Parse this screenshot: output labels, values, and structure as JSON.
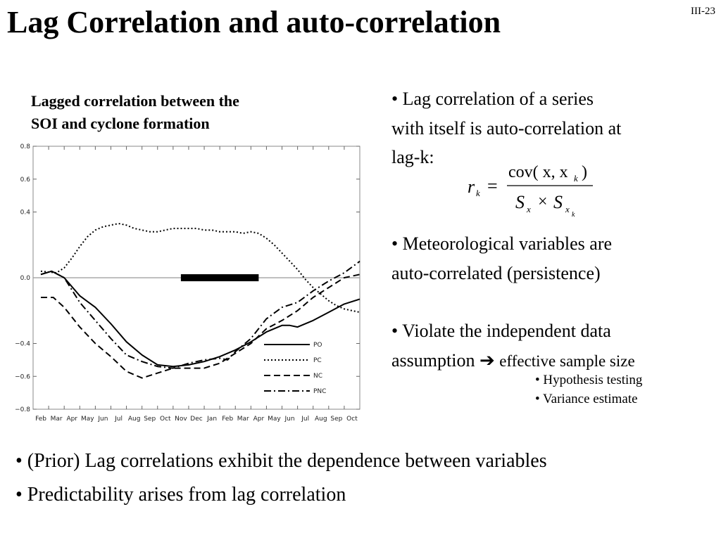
{
  "slide_number": "III-23",
  "title": "Lag Correlation and auto-correlation",
  "chart_caption": [
    "Lagged correlation between the",
    "SOI and cyclone formation"
  ],
  "chart_data": {
    "type": "line",
    "title": "",
    "xlabel": "",
    "ylabel": "",
    "ylim": [
      -0.8,
      0.8
    ],
    "yticks": [
      "0.8",
      "0.6",
      "0.4",
      "0.0",
      "−0.4",
      "−0.6",
      "−0.8"
    ],
    "ytick_values": [
      0.8,
      0.6,
      0.4,
      0.0,
      -0.4,
      -0.6,
      -0.8
    ],
    "categories": [
      "Feb",
      "Mar",
      "Apr",
      "May",
      "Jun",
      "Jul",
      "Aug",
      "Sep",
      "Oct",
      "Nov",
      "Dec",
      "Jan",
      "Feb",
      "Mar",
      "Apr",
      "May",
      "Jun",
      "Jul",
      "Aug",
      "Sep",
      "Oct"
    ],
    "highlight_bar": {
      "from_index": 9,
      "to_index": 14,
      "y": 0.0
    },
    "legend_position": "bottom-right",
    "series": [
      {
        "name": "PO",
        "style": "solid",
        "x": [
          0,
          0.7,
          1.5,
          2.5,
          3.5,
          4.5,
          5.5,
          6.5,
          7.5,
          8.5,
          9.5,
          10.5,
          11.5,
          12.5,
          13.5,
          14.5,
          15.5,
          16,
          16.5,
          17.5,
          18.5,
          19.5,
          20.5
        ],
        "values": [
          0.02,
          0.04,
          0.0,
          -0.11,
          -0.18,
          -0.28,
          -0.39,
          -0.47,
          -0.53,
          -0.54,
          -0.53,
          -0.51,
          -0.48,
          -0.44,
          -0.39,
          -0.33,
          -0.29,
          -0.29,
          -0.3,
          -0.26,
          -0.21,
          -0.16,
          -0.13
        ]
      },
      {
        "name": "PC",
        "style": "dotted",
        "x": [
          0,
          1,
          1.5,
          2,
          2.5,
          3,
          3.5,
          4,
          4.5,
          5,
          5.5,
          6,
          6.5,
          7,
          7.5,
          8,
          8.5,
          9,
          9.5,
          10,
          10.5,
          11,
          11.5,
          12,
          12.5,
          13,
          13.5,
          14,
          14.5,
          15,
          15.5,
          16,
          16.5,
          17,
          17.5,
          18,
          18.5,
          19,
          19.5,
          20,
          20.5
        ],
        "values": [
          0.04,
          0.03,
          0.06,
          0.12,
          0.19,
          0.25,
          0.29,
          0.31,
          0.32,
          0.33,
          0.32,
          0.3,
          0.29,
          0.28,
          0.28,
          0.29,
          0.3,
          0.3,
          0.3,
          0.3,
          0.29,
          0.29,
          0.28,
          0.28,
          0.28,
          0.27,
          0.28,
          0.27,
          0.24,
          0.2,
          0.15,
          0.1,
          0.05,
          -0.01,
          -0.06,
          -0.1,
          -0.14,
          -0.17,
          -0.19,
          -0.2,
          -0.21
        ]
      },
      {
        "name": "NC",
        "style": "dashed",
        "x": [
          0,
          0.8,
          1.5,
          2.5,
          3.5,
          4.5,
          5.5,
          6.5,
          7.5,
          8.5,
          9.5,
          10.5,
          11.5,
          12.5,
          13.5,
          14.5,
          15.5,
          16.5,
          17.5,
          18.5,
          19.5,
          20.5
        ],
        "values": [
          -0.12,
          -0.12,
          -0.18,
          -0.3,
          -0.4,
          -0.48,
          -0.57,
          -0.61,
          -0.58,
          -0.55,
          -0.55,
          -0.55,
          -0.52,
          -0.46,
          -0.4,
          -0.31,
          -0.26,
          -0.2,
          -0.12,
          -0.06,
          0.0,
          0.02
        ]
      },
      {
        "name": "PNC",
        "style": "dashdot",
        "x": [
          0,
          0.7,
          1.5,
          2.5,
          3.5,
          4.5,
          5.5,
          6.5,
          7.5,
          8.5,
          9.5,
          10.5,
          11.5,
          12,
          12.5,
          13.5,
          14.5,
          15.5,
          16.5,
          17.5,
          18.5,
          19.5,
          20.5
        ],
        "values": [
          0.02,
          0.04,
          0.0,
          -0.15,
          -0.26,
          -0.37,
          -0.47,
          -0.51,
          -0.54,
          -0.55,
          -0.52,
          -0.5,
          -0.49,
          -0.5,
          -0.45,
          -0.37,
          -0.25,
          -0.18,
          -0.15,
          -0.08,
          -0.02,
          0.03,
          0.1
        ]
      }
    ]
  },
  "bullets": {
    "b1": {
      "marker": "•",
      "line1": "Lag correlation of a series",
      "line2": "with itself is auto-correlation at",
      "line3": "lag-k:"
    },
    "b2": {
      "marker": "•",
      "line1": "Meteorological variables are",
      "line2": "auto-correlated (persistence)"
    },
    "b3": {
      "marker": "•",
      "line1": "Violate the independent data",
      "line2_text": "assumption",
      "arrow": "➔",
      "line2_small": "effective sample size"
    },
    "sub1": "• Hypothesis testing",
    "sub2": "• Variance estimate"
  },
  "formula": {
    "lhs": "r",
    "lhs_sub": "k",
    "equals": "=",
    "num": "cov( x, x",
    "num_sub": "k",
    "num_close": ")",
    "den_s1": "S",
    "den_sub1": "x",
    "times": "×",
    "den_s2": "S",
    "den_sub2": "x",
    "den_subsub": "k"
  },
  "bottom": {
    "line1": "• (Prior) Lag correlations exhibit the dependence between variables",
    "line2": "• Predictability arises from lag correlation"
  }
}
